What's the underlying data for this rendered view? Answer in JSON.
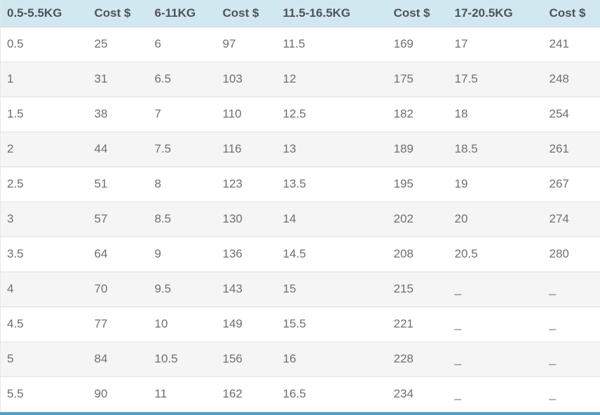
{
  "table": {
    "headers": [
      "0.5-5.5KG",
      "Cost $",
      "6-11KG",
      "Cost $",
      "11.5-16.5KG",
      "Cost $",
      "17-20.5KG",
      "Cost $"
    ],
    "rows": [
      [
        "0.5",
        "25",
        "6",
        "97",
        "11.5",
        "169",
        "17",
        "241"
      ],
      [
        "1",
        "31",
        "6.5",
        "103",
        "12",
        "175",
        "17.5",
        "248"
      ],
      [
        "1.5",
        "38",
        "7",
        "110",
        "12.5",
        "182",
        "18",
        "254"
      ],
      [
        "2",
        "44",
        "7.5",
        "116",
        "13",
        "189",
        "18.5",
        "261"
      ],
      [
        "2.5",
        "51",
        "8",
        "123",
        "13.5",
        "195",
        "19",
        "267"
      ],
      [
        "3",
        "57",
        "8.5",
        "130",
        "14",
        "202",
        "20",
        "274"
      ],
      [
        "3.5",
        "64",
        "9",
        "136",
        "14.5",
        "208",
        "20.5",
        "280"
      ],
      [
        "4",
        "70",
        "9.5",
        "143",
        "15",
        "215",
        "_",
        "_"
      ],
      [
        "4.5",
        "77",
        "10",
        "149",
        "15.5",
        "221",
        "_",
        "_"
      ],
      [
        "5",
        "84",
        "10.5",
        "156",
        "16",
        "228",
        "_",
        "_"
      ],
      [
        "5.5",
        "90",
        "11",
        "162",
        "16.5",
        "234",
        "_",
        "_"
      ]
    ]
  },
  "colors": {
    "header_bg": "#d2e8f1",
    "header_text": "#4f5355",
    "body_text": "#6d7070",
    "zebra_row_bg": "#f5f5f5",
    "row_border": "#e1e1e1",
    "bottom_bar": "#4aa3c8"
  }
}
